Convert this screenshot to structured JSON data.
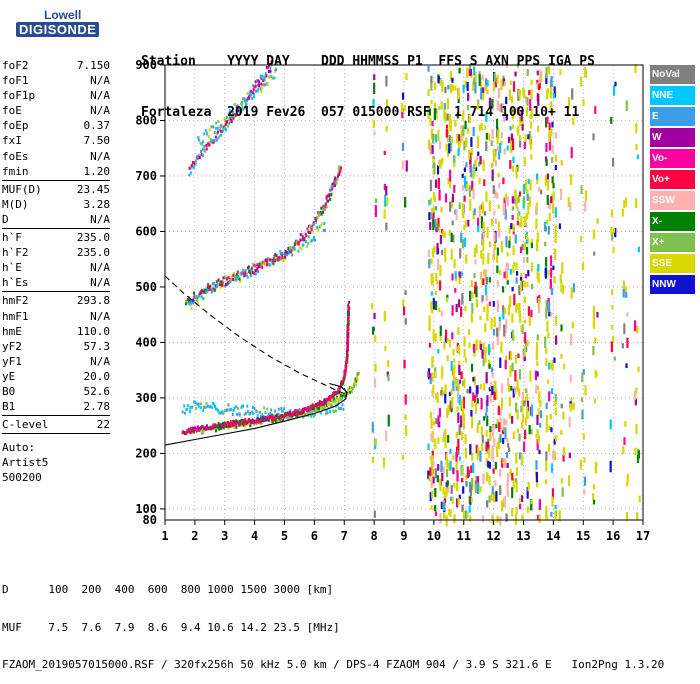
{
  "logo": {
    "line1": "Lowell",
    "line2": "DIGISONDE"
  },
  "header": {
    "row1": "Station    YYYY DAY    DDD HHMMSS P1  FFS S AXN PPS IGA PS",
    "row2": "Fortaleza  2019 Fev26  057 015000 RSF   1 714 100 10+ 11"
  },
  "params": {
    "group1": [
      {
        "k": "foF2",
        "v": "7.150"
      },
      {
        "k": "foF1",
        "v": "N/A"
      },
      {
        "k": "foF1p",
        "v": "N/A"
      },
      {
        "k": "foE",
        "v": "N/A"
      },
      {
        "k": "foEp",
        "v": "0.37"
      },
      {
        "k": "fxI",
        "v": "7.50"
      },
      {
        "k": "foEs",
        "v": "N/A"
      },
      {
        "k": "fmin",
        "v": "1.20"
      }
    ],
    "group2": [
      {
        "k": "MUF(D)",
        "v": "23.45"
      },
      {
        "k": "M(D)",
        "v": "3.28"
      },
      {
        "k": "D",
        "v": "N/A"
      }
    ],
    "group3": [
      {
        "k": "h`F",
        "v": "235.0"
      },
      {
        "k": "h`F2",
        "v": "235.0"
      },
      {
        "k": "h`E",
        "v": "N/A"
      },
      {
        "k": "h`Es",
        "v": "N/A"
      }
    ],
    "group4": [
      {
        "k": "hmF2",
        "v": "293.8"
      },
      {
        "k": "hmF1",
        "v": "N/A"
      },
      {
        "k": "hmE",
        "v": "110.0"
      },
      {
        "k": "yF2",
        "v": "57.3"
      },
      {
        "k": "yF1",
        "v": "N/A"
      },
      {
        "k": "yE",
        "v": "20.0"
      },
      {
        "k": "B0",
        "v": "52.6"
      },
      {
        "k": "B1",
        "v": "2.78"
      }
    ],
    "group5": [
      {
        "k": "C-level",
        "v": "22"
      }
    ],
    "auto": [
      "Auto:",
      "Artist5",
      "500200"
    ]
  },
  "legend": [
    {
      "label": "NoVal",
      "color": "#808080"
    },
    {
      "label": "NNE",
      "color": "#00c8ff"
    },
    {
      "label": "E",
      "color": "#3a9fe8"
    },
    {
      "label": "W",
      "color": "#a000a0"
    },
    {
      "label": "Vo-",
      "color": "#ff00a0"
    },
    {
      "label": "Vo+",
      "color": "#ff0040"
    },
    {
      "label": "SSW",
      "color": "#ffb0b0"
    },
    {
      "label": "X-",
      "color": "#008000"
    },
    {
      "label": "X+",
      "color": "#80c050"
    },
    {
      "label": "SSE",
      "color": "#d8d800"
    },
    {
      "label": "NNW",
      "color": "#1010d0"
    }
  ],
  "footer": {
    "row1": "D      100  200  400  600  800 1000 1500 3000 [km]",
    "row2": "MUF    7.5  7.6  7.9  8.6  9.4 10.6 14.2 23.5 [MHz]",
    "row3": "FZAOM_2019057015000.RSF / 320fx256h 50 kHz 5.0 km / DPS-4 FZAOM 904 / 3.9 S 321.6 E   Ion2Png 1.3.20"
  },
  "chart_data": {
    "type": "scatter",
    "title": "",
    "xlabel": "",
    "ylabel": "",
    "xlim": [
      1,
      17
    ],
    "ylim": [
      80,
      900
    ],
    "xticks": [
      1,
      2,
      3,
      4,
      5,
      6,
      7,
      8,
      9,
      10,
      11,
      12,
      13,
      14,
      15,
      16,
      17
    ],
    "yticks": [
      100,
      200,
      300,
      400,
      500,
      600,
      700,
      800,
      900
    ],
    "ytick_extra": 80,
    "grid": "dotted",
    "traces": {
      "o_trace_1": [
        [
          1.6,
          238
        ],
        [
          2.2,
          245
        ],
        [
          3,
          252
        ],
        [
          4,
          259
        ],
        [
          5,
          268
        ],
        [
          5.8,
          280
        ],
        [
          6.4,
          295
        ],
        [
          6.8,
          312
        ],
        [
          7,
          335
        ],
        [
          7.1,
          375
        ],
        [
          7.15,
          470
        ]
      ],
      "x_trace_1": [
        [
          2.2,
          240
        ],
        [
          3,
          248
        ],
        [
          4,
          256
        ],
        [
          5,
          265
        ],
        [
          6,
          278
        ],
        [
          6.8,
          298
        ],
        [
          7.3,
          318
        ],
        [
          7.5,
          345
        ]
      ],
      "o_trace_2": [
        [
          1.7,
          472
        ],
        [
          2.2,
          490
        ],
        [
          3,
          510
        ],
        [
          4,
          533
        ],
        [
          5,
          560
        ],
        [
          5.8,
          600
        ],
        [
          6.3,
          640
        ],
        [
          6.7,
          690
        ],
        [
          6.9,
          720
        ]
      ],
      "o_trace_3": [
        [
          1.8,
          705
        ],
        [
          2.2,
          740
        ],
        [
          2.8,
          775
        ],
        [
          3.3,
          810
        ],
        [
          3.8,
          845
        ],
        [
          4.3,
          880
        ],
        [
          4.6,
          900
        ]
      ],
      "e_trace_1": [
        [
          1.6,
          280
        ],
        [
          2,
          285
        ],
        [
          3,
          280
        ],
        [
          4,
          275
        ],
        [
          5,
          272
        ],
        [
          6,
          275
        ],
        [
          7,
          285
        ]
      ],
      "e_trace_2": [
        [
          1.8,
          468
        ],
        [
          2.6,
          500
        ],
        [
          3.6,
          520
        ],
        [
          4.6,
          550
        ],
        [
          5.6,
          575
        ],
        [
          6.4,
          610
        ]
      ],
      "e_trace_3": [
        [
          2.1,
          760
        ],
        [
          2.8,
          790
        ],
        [
          3.6,
          830
        ],
        [
          4.2,
          860
        ],
        [
          4.8,
          895
        ]
      ]
    },
    "profile_solid": [
      [
        1,
        215
      ],
      [
        2,
        225
      ],
      [
        3,
        235
      ],
      [
        4,
        245
      ],
      [
        5,
        258
      ],
      [
        6,
        272
      ],
      [
        6.7,
        285
      ],
      [
        7.05,
        298
      ],
      [
        7.1,
        310
      ],
      [
        6.9,
        320
      ],
      [
        6.5,
        326
      ]
    ],
    "profile_dashed": [
      [
        1,
        520
      ],
      [
        1.6,
        490
      ],
      [
        2.5,
        450
      ],
      [
        3.5,
        410
      ],
      [
        4.5,
        375
      ],
      [
        5.5,
        345
      ],
      [
        6.3,
        325
      ],
      [
        6.8,
        312
      ],
      [
        7.1,
        306
      ],
      [
        7,
        318
      ]
    ],
    "noise_columns": [
      8,
      8.4,
      9,
      9.9,
      10,
      10.2,
      10.4,
      10.6,
      10.8,
      11,
      11.2,
      11.4,
      11.6,
      11.8,
      12,
      12.2,
      12.4,
      12.6,
      12.8,
      13,
      13.2,
      13.5,
      13.8,
      14,
      14.3,
      14.6,
      15,
      15.4,
      16,
      16.4,
      16.8
    ]
  }
}
